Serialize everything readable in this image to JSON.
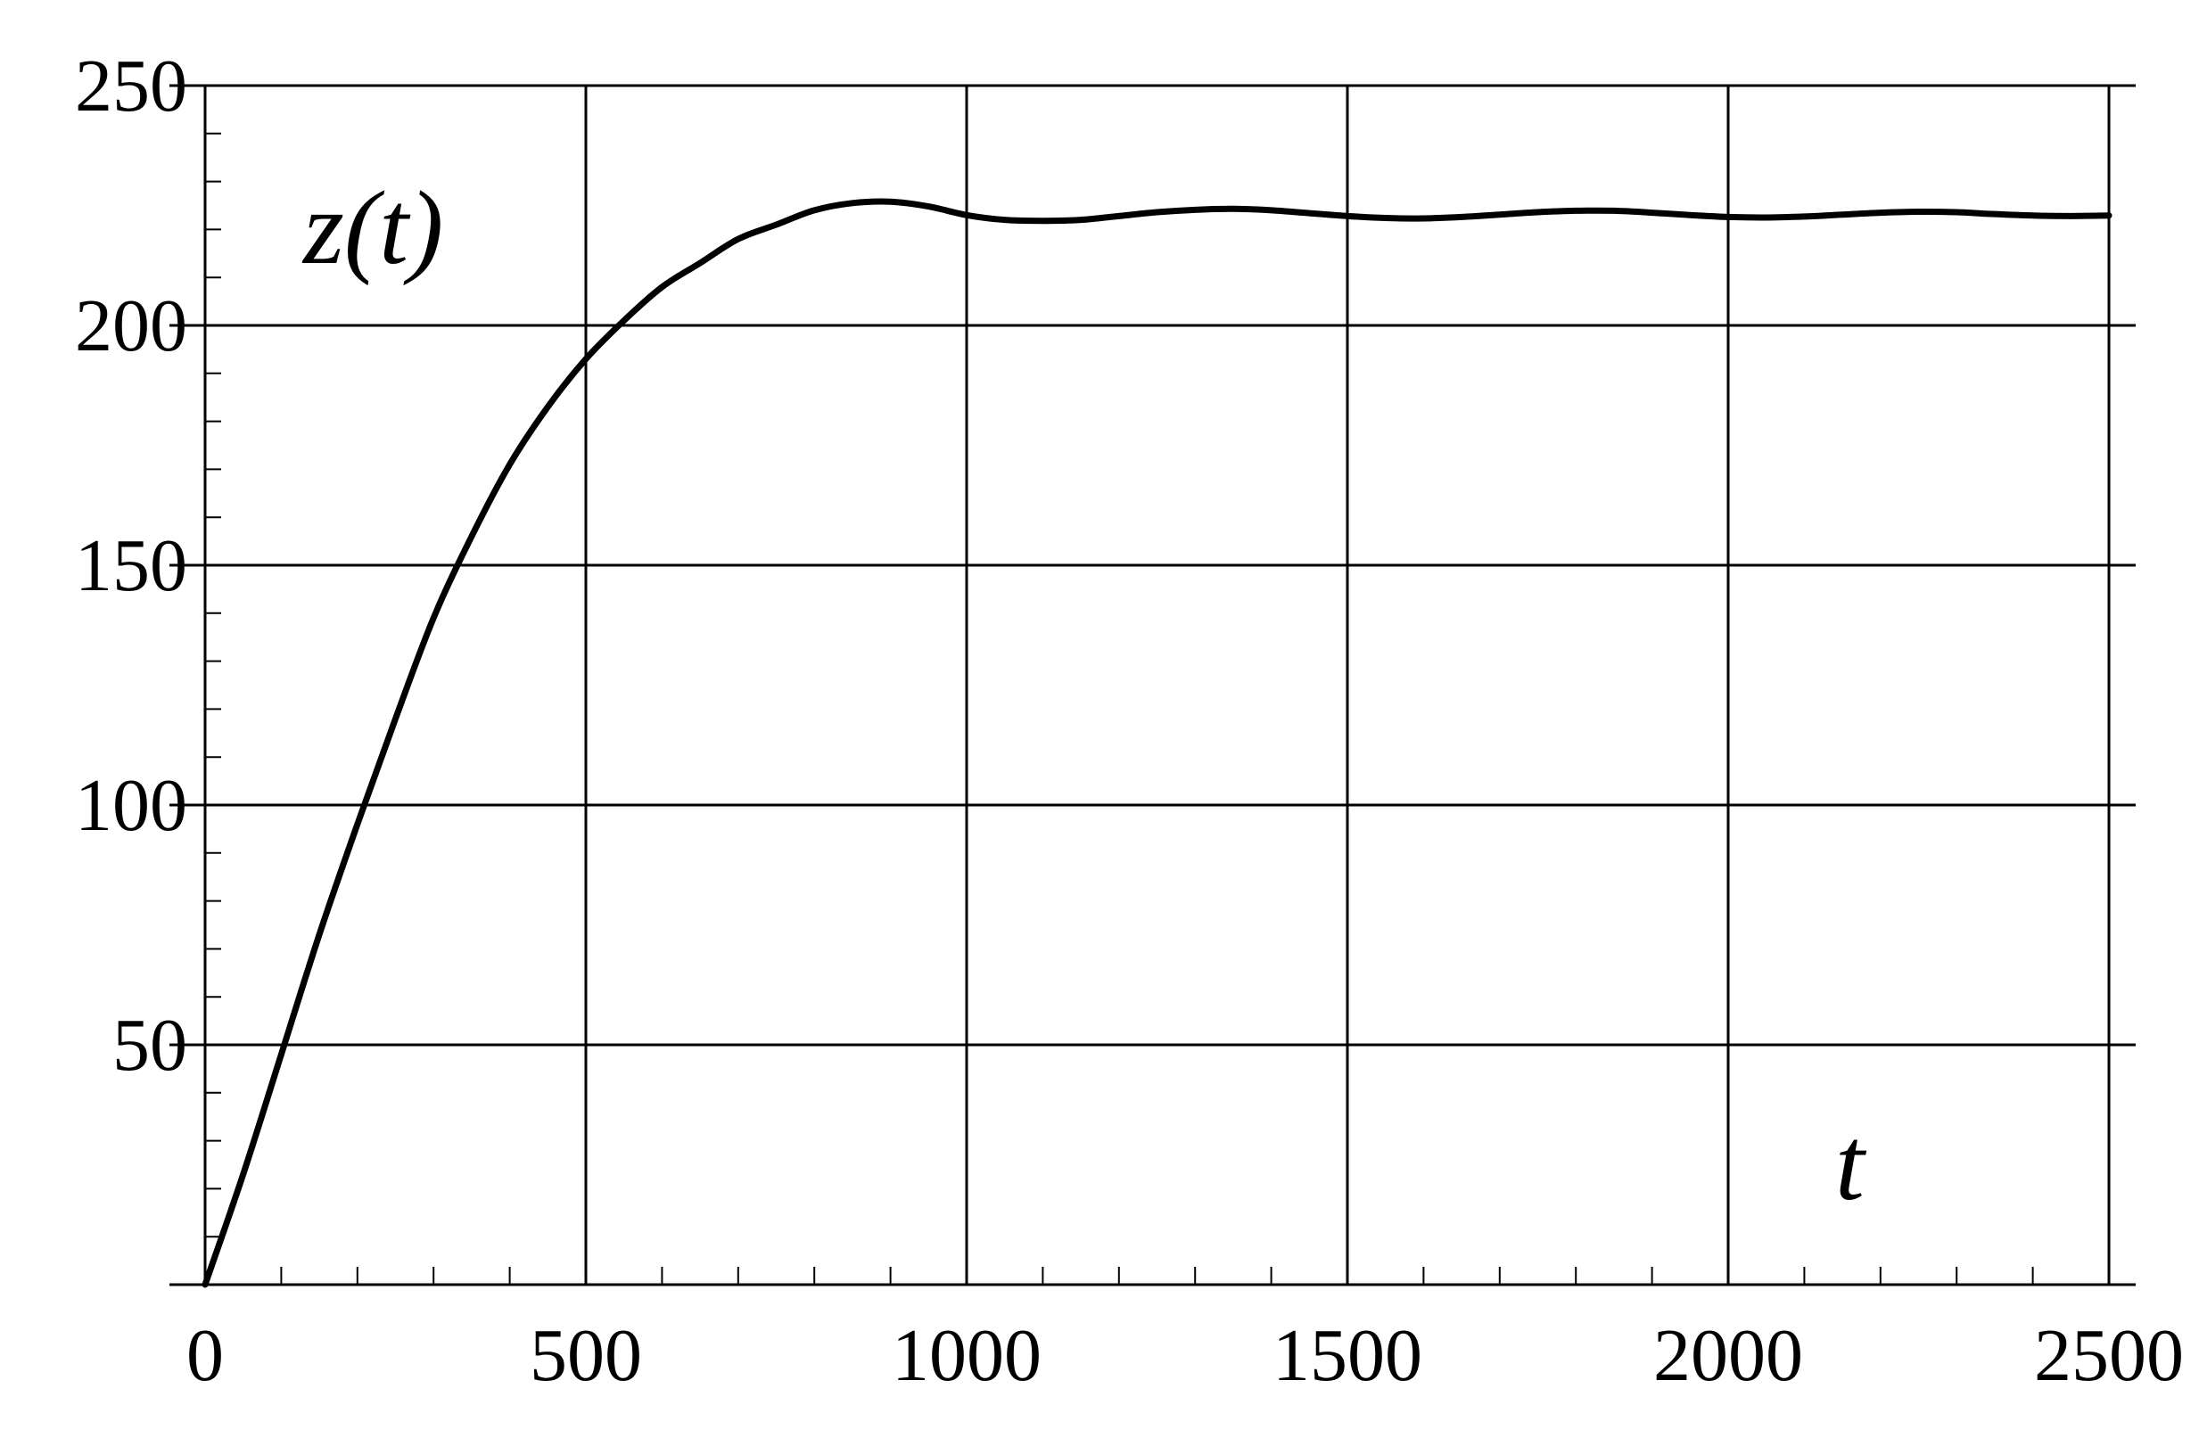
{
  "chart_data": {
    "type": "line",
    "title": "",
    "xlabel": "t",
    "ylabel": "z(t)",
    "xlim": [
      0,
      2500
    ],
    "ylim": [
      0,
      250
    ],
    "grid": true,
    "x_ticks": [
      0,
      500,
      1000,
      1500,
      2000,
      2500
    ],
    "y_ticks": [
      50,
      100,
      150,
      200,
      250
    ],
    "x_tick_labels": [
      "0",
      "500",
      "1000",
      "1500",
      "2000",
      "2500"
    ],
    "y_tick_labels": [
      "50",
      "100",
      "150",
      "200",
      "250"
    ],
    "series": [
      {
        "x": [
          0,
          50,
          100,
          150,
          200,
          250,
          300,
          350,
          400,
          450,
          500,
          550,
          600,
          650,
          700,
          750,
          800,
          850,
          900,
          950,
          1000,
          1050,
          1100,
          1150,
          1200,
          1250,
          1300,
          1350,
          1400,
          1450,
          1500,
          1550,
          1600,
          1650,
          1700,
          1750,
          1800,
          1850,
          1900,
          1950,
          2000,
          2050,
          2100,
          2150,
          2200,
          2250,
          2300,
          2350,
          2400,
          2450,
          2500
        ],
        "y": [
          0,
          23,
          48,
          73,
          96,
          118,
          139,
          156,
          171,
          183,
          193,
          201,
          208,
          213,
          218,
          221,
          224,
          225.5,
          225.8,
          224.8,
          223,
          222,
          221.8,
          222,
          222.8,
          223.6,
          224.1,
          224.3,
          224,
          223.4,
          222.8,
          222.4,
          222.3,
          222.6,
          223.1,
          223.6,
          223.9,
          223.9,
          223.5,
          223,
          222.6,
          222.5,
          222.7,
          223.1,
          223.5,
          223.7,
          223.6,
          223.2,
          222.9,
          222.8,
          222.9
        ]
      }
    ]
  }
}
